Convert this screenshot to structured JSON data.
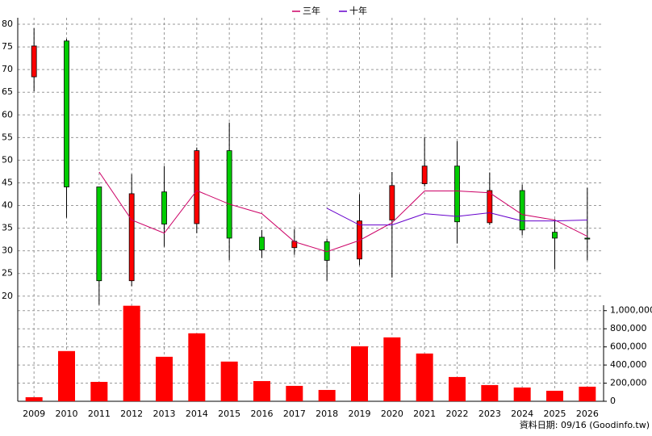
{
  "chart_data": {
    "type": "candlestick",
    "categories": [
      "2009",
      "2010",
      "2011",
      "2012",
      "2013",
      "2014",
      "2015",
      "2016",
      "2017",
      "2018",
      "2019",
      "2020",
      "2021",
      "2022",
      "2023",
      "2024",
      "2025",
      "2026"
    ],
    "open": [
      68.4,
      76.3,
      44.1,
      23.4,
      43.0,
      36.0,
      52.1,
      33.0,
      30.7,
      32.0,
      28.2,
      36.8,
      44.8,
      48.7,
      36.2,
      43.3,
      34.1,
      32.8
    ],
    "high": [
      79.1,
      76.8,
      44.1,
      46.9,
      48.7,
      52.8,
      58.3,
      34.6,
      34.8,
      32.7,
      42.5,
      47.4,
      55.1,
      54.2,
      47.3,
      44.6,
      37.0,
      43.9
    ],
    "low": [
      65.2,
      37.3,
      18.1,
      22.2,
      30.9,
      33.9,
      27.9,
      28.4,
      29.1,
      23.4,
      26.8,
      24.1,
      44.2,
      31.6,
      35.7,
      33.4,
      25.9,
      27.9
    ],
    "close": [
      75.2,
      44.1,
      23.4,
      42.6,
      35.9,
      52.1,
      32.8,
      30.2,
      32.1,
      27.9,
      36.6,
      44.4,
      48.7,
      36.4,
      43.3,
      34.6,
      32.8,
      32.6
    ],
    "up_color": "#ff0000",
    "down_color": "#00cc00",
    "series": [
      {
        "name": "三年",
        "color": "#cc0066",
        "values": [
          null,
          null,
          47.4,
          36.8,
          33.9,
          43.3,
          40.3,
          38.2,
          32.0,
          29.8,
          32.3,
          36.2,
          43.2,
          43.2,
          42.8,
          38.0,
          36.8,
          33.2
        ]
      },
      {
        "name": "十年",
        "color": "#6600cc",
        "values": [
          null,
          null,
          null,
          null,
          null,
          null,
          null,
          null,
          null,
          39.4,
          35.7,
          35.7,
          38.2,
          37.6,
          38.4,
          36.6,
          36.6,
          36.8
        ]
      }
    ],
    "ylim": [
      18,
      80
    ],
    "yticks": [
      20,
      25,
      30,
      35,
      40,
      45,
      50,
      55,
      60,
      65,
      70,
      75,
      80
    ],
    "volume": {
      "color": "#ff0000",
      "values": [
        45000,
        554000,
        214000,
        1054000,
        491000,
        750000,
        438000,
        223000,
        170000,
        125000,
        607000,
        705000,
        527000,
        268000,
        179000,
        152000,
        116000,
        161000
      ],
      "ylim": [
        0,
        1060000
      ],
      "yticks": [
        0,
        {
          "value": 200000,
          "label": "200,000"
        },
        {
          "value": 400000,
          "label": "400,000"
        },
        {
          "value": 600000,
          "label": "600,000"
        },
        {
          "value": 800000,
          "label": "800,000"
        },
        {
          "value": 1000000,
          "label": "1,000,000"
        }
      ]
    },
    "grid": true,
    "footnote": "資料日期: 09/16  (Goodinfo.tw)"
  }
}
